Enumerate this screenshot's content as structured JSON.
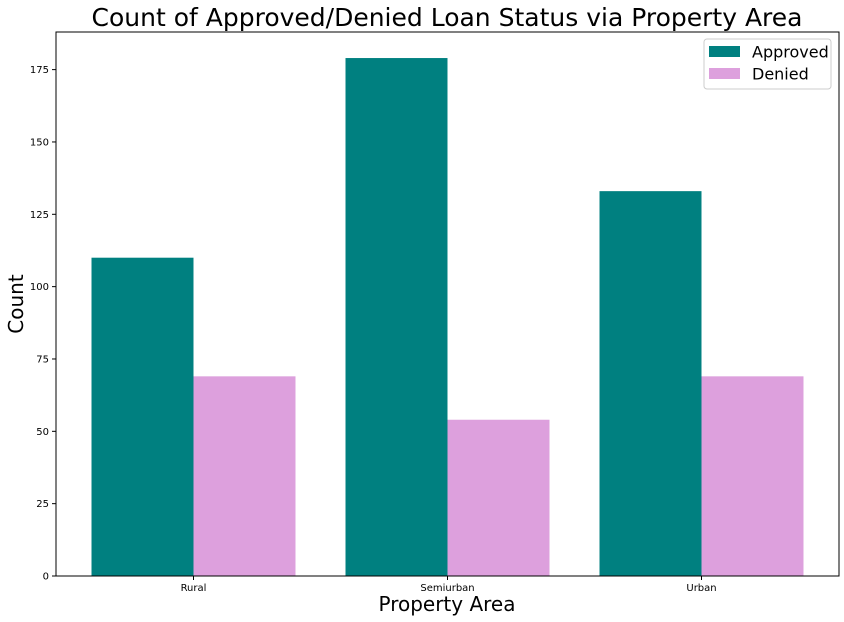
{
  "chart_data": {
    "type": "bar",
    "title": "Count of Approved/Denied Loan Status via Property Area",
    "xlabel": "Property Area",
    "ylabel": "Count",
    "categories": [
      "Rural",
      "Semiurban",
      "Urban"
    ],
    "series": [
      {
        "name": "Approved",
        "color": "#008080",
        "values": [
          110,
          179,
          133
        ]
      },
      {
        "name": "Denied",
        "color": "#dda0dd",
        "values": [
          69,
          54,
          69
        ]
      }
    ],
    "ylim": [
      0,
      188
    ],
    "yticks": [
      0,
      25,
      50,
      75,
      100,
      125,
      150,
      175
    ],
    "grid": false,
    "legend_position": "top-right"
  }
}
